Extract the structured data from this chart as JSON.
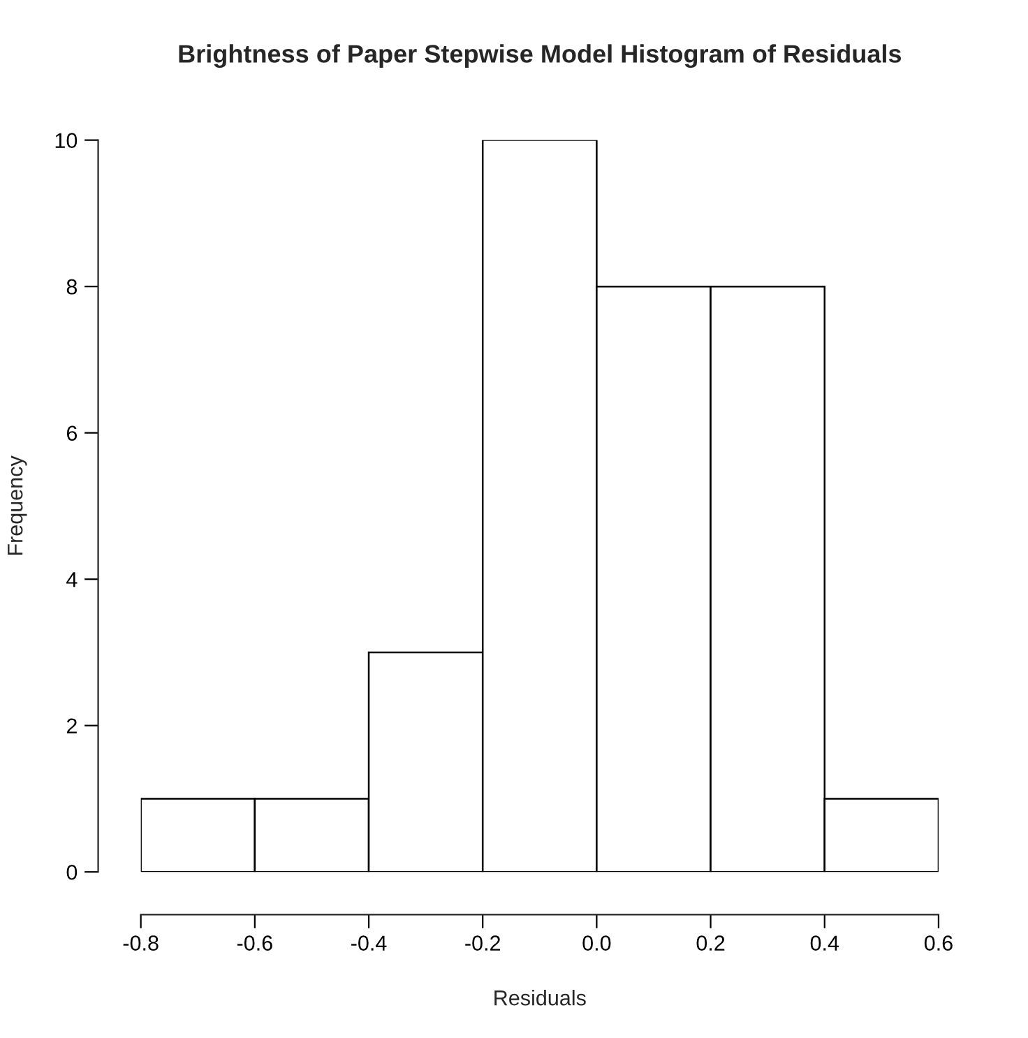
{
  "chart_data": {
    "type": "histogram",
    "title": "Brightness of Paper Stepwise Model Histogram of Residuals",
    "xlabel": "Residuals",
    "ylabel": "Frequency",
    "bins": [
      -0.8,
      -0.6,
      -0.4,
      -0.2,
      0.0,
      0.2,
      0.4,
      0.6
    ],
    "values": [
      1,
      1,
      3,
      10,
      8,
      8,
      1
    ],
    "color": "#ffffff",
    "xlim": [
      -0.8,
      0.6
    ],
    "ylim": [
      0,
      10
    ],
    "xticks": [
      {
        "value": -0.8,
        "label": "-0.8"
      },
      {
        "value": -0.6,
        "label": "-0.6"
      },
      {
        "value": -0.4,
        "label": "-0.4"
      },
      {
        "value": -0.2,
        "label": "-0.2"
      },
      {
        "value": 0.0,
        "label": "0.0"
      },
      {
        "value": 0.2,
        "label": "0.2"
      },
      {
        "value": 0.4,
        "label": "0.4"
      },
      {
        "value": 0.6,
        "label": "0.6"
      }
    ],
    "yticks": [
      0,
      2,
      4,
      6,
      8,
      10
    ],
    "grid": false,
    "legend": false
  }
}
